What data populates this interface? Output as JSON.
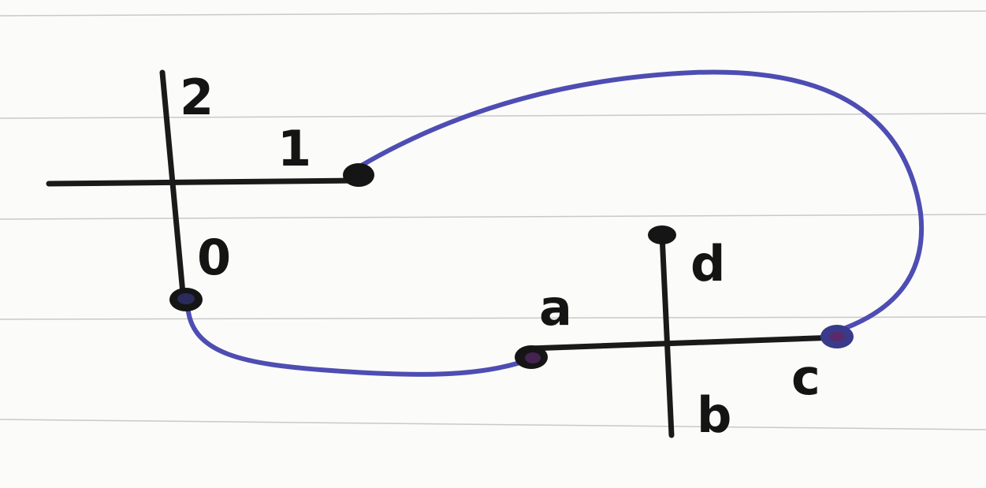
{
  "colors": {
    "paper": "#fbfbf9",
    "rule_line": "#c9c9c9",
    "ink_black": "#1a1a1a",
    "ink_blue": "#4d4db3",
    "blue_dot": "#3a3a8a"
  },
  "left_junction": {
    "labels": {
      "top": "2",
      "right": "1",
      "bottom": "0"
    }
  },
  "right_junction": {
    "labels": {
      "top": "d",
      "left": "a",
      "bottom": "b",
      "right": "c"
    }
  },
  "connections": [
    {
      "from": "1",
      "to": "c",
      "color": "blue"
    },
    {
      "from": "0",
      "to": "a",
      "color": "blue"
    }
  ]
}
